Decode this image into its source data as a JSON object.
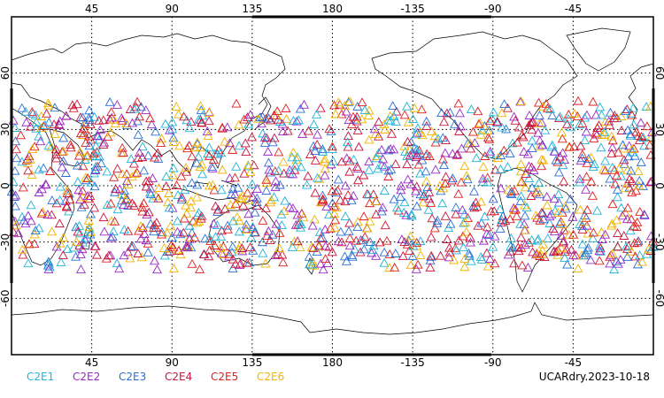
{
  "map": {
    "lon_ticks": [
      "45",
      "90",
      "135",
      "180",
      "-135",
      "-90",
      "-45"
    ],
    "lat_ticks": [
      "60",
      "30",
      "0",
      "-30",
      "-60"
    ],
    "lon_range": [
      0,
      360
    ],
    "lat_range": [
      -90,
      90
    ],
    "lon_gridlines": [
      45,
      90,
      135,
      180,
      225,
      270,
      315
    ],
    "lat_gridlines": [
      60,
      30,
      0,
      -30,
      -60
    ],
    "grid": "dotted",
    "marker": "open-triangle",
    "observation_lat_band": [
      -45,
      45
    ]
  },
  "legend": {
    "items": [
      {
        "label": "C2E1",
        "color": "#1fb4d8"
      },
      {
        "label": "C2E2",
        "color": "#9a28c8"
      },
      {
        "label": "C2E3",
        "color": "#2a6fd6"
      },
      {
        "label": "C2E4",
        "color": "#c8143c"
      },
      {
        "label": "C2E5",
        "color": "#e01e1e"
      },
      {
        "label": "C2E6",
        "color": "#f0b400"
      }
    ]
  },
  "footer": {
    "label": "UCARdry.2023-10-18"
  }
}
